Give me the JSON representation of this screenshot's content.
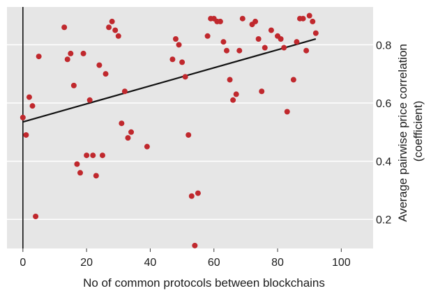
{
  "chart_data": {
    "type": "scatter",
    "xlabel": "No of common protocols between blockchains",
    "ylabel": "Average pairwise price correlation",
    "ylabel_sub": "(coefficient)",
    "xlim": [
      -5,
      110
    ],
    "ylim": [
      0.1,
      0.93
    ],
    "x_ticks": [
      0,
      20,
      40,
      60,
      80,
      100
    ],
    "x_tick_labels": [
      "0",
      "20",
      "40",
      "60",
      "80",
      "100"
    ],
    "y_ticks": [
      0.2,
      0.4,
      0.6,
      0.8
    ],
    "y_tick_labels": [
      "0.2",
      "0.4",
      "0.6",
      "0.8"
    ],
    "y_axis_position": "right",
    "grid": "horizontal",
    "background_color": "#e6e6e6",
    "grid_color": "#ffffff",
    "point_color": "#c0282d",
    "line_color": "#111111",
    "zero_line_color": "#111111",
    "trend_line": {
      "x": [
        0,
        92
      ],
      "y": [
        0.535,
        0.82
      ]
    },
    "points": [
      {
        "x": 0,
        "y": 0.55
      },
      {
        "x": 1,
        "y": 0.49
      },
      {
        "x": 2,
        "y": 0.62
      },
      {
        "x": 3,
        "y": 0.59
      },
      {
        "x": 4,
        "y": 0.21
      },
      {
        "x": 5,
        "y": 0.76
      },
      {
        "x": 13,
        "y": 0.86
      },
      {
        "x": 14,
        "y": 0.75
      },
      {
        "x": 15,
        "y": 0.77
      },
      {
        "x": 16,
        "y": 0.66
      },
      {
        "x": 17,
        "y": 0.39
      },
      {
        "x": 18,
        "y": 0.36
      },
      {
        "x": 19,
        "y": 0.77
      },
      {
        "x": 20,
        "y": 0.42
      },
      {
        "x": 21,
        "y": 0.61
      },
      {
        "x": 22,
        "y": 0.42
      },
      {
        "x": 23,
        "y": 0.35
      },
      {
        "x": 24,
        "y": 0.73
      },
      {
        "x": 25,
        "y": 0.42
      },
      {
        "x": 26,
        "y": 0.7
      },
      {
        "x": 27,
        "y": 0.86
      },
      {
        "x": 28,
        "y": 0.88
      },
      {
        "x": 29,
        "y": 0.85
      },
      {
        "x": 30,
        "y": 0.83
      },
      {
        "x": 31,
        "y": 0.53
      },
      {
        "x": 32,
        "y": 0.64
      },
      {
        "x": 33,
        "y": 0.48
      },
      {
        "x": 34,
        "y": 0.5
      },
      {
        "x": 39,
        "y": 0.45
      },
      {
        "x": 47,
        "y": 0.75
      },
      {
        "x": 48,
        "y": 0.82
      },
      {
        "x": 49,
        "y": 0.8
      },
      {
        "x": 50,
        "y": 0.74
      },
      {
        "x": 51,
        "y": 0.69
      },
      {
        "x": 52,
        "y": 0.49
      },
      {
        "x": 53,
        "y": 0.28
      },
      {
        "x": 54,
        "y": 0.11
      },
      {
        "x": 55,
        "y": 0.29
      },
      {
        "x": 58,
        "y": 0.83
      },
      {
        "x": 59,
        "y": 0.89
      },
      {
        "x": 60,
        "y": 0.89
      },
      {
        "x": 61,
        "y": 0.88
      },
      {
        "x": 62,
        "y": 0.88
      },
      {
        "x": 63,
        "y": 0.81
      },
      {
        "x": 64,
        "y": 0.78
      },
      {
        "x": 65,
        "y": 0.68
      },
      {
        "x": 66,
        "y": 0.61
      },
      {
        "x": 67,
        "y": 0.63
      },
      {
        "x": 68,
        "y": 0.78
      },
      {
        "x": 69,
        "y": 0.89
      },
      {
        "x": 72,
        "y": 0.87
      },
      {
        "x": 73,
        "y": 0.88
      },
      {
        "x": 74,
        "y": 0.82
      },
      {
        "x": 75,
        "y": 0.64
      },
      {
        "x": 76,
        "y": 0.79
      },
      {
        "x": 78,
        "y": 0.85
      },
      {
        "x": 80,
        "y": 0.83
      },
      {
        "x": 81,
        "y": 0.82
      },
      {
        "x": 82,
        "y": 0.79
      },
      {
        "x": 83,
        "y": 0.57
      },
      {
        "x": 85,
        "y": 0.68
      },
      {
        "x": 86,
        "y": 0.81
      },
      {
        "x": 87,
        "y": 0.89
      },
      {
        "x": 88,
        "y": 0.89
      },
      {
        "x": 89,
        "y": 0.78
      },
      {
        "x": 90,
        "y": 0.9
      },
      {
        "x": 91,
        "y": 0.88
      },
      {
        "x": 92,
        "y": 0.84
      }
    ]
  }
}
